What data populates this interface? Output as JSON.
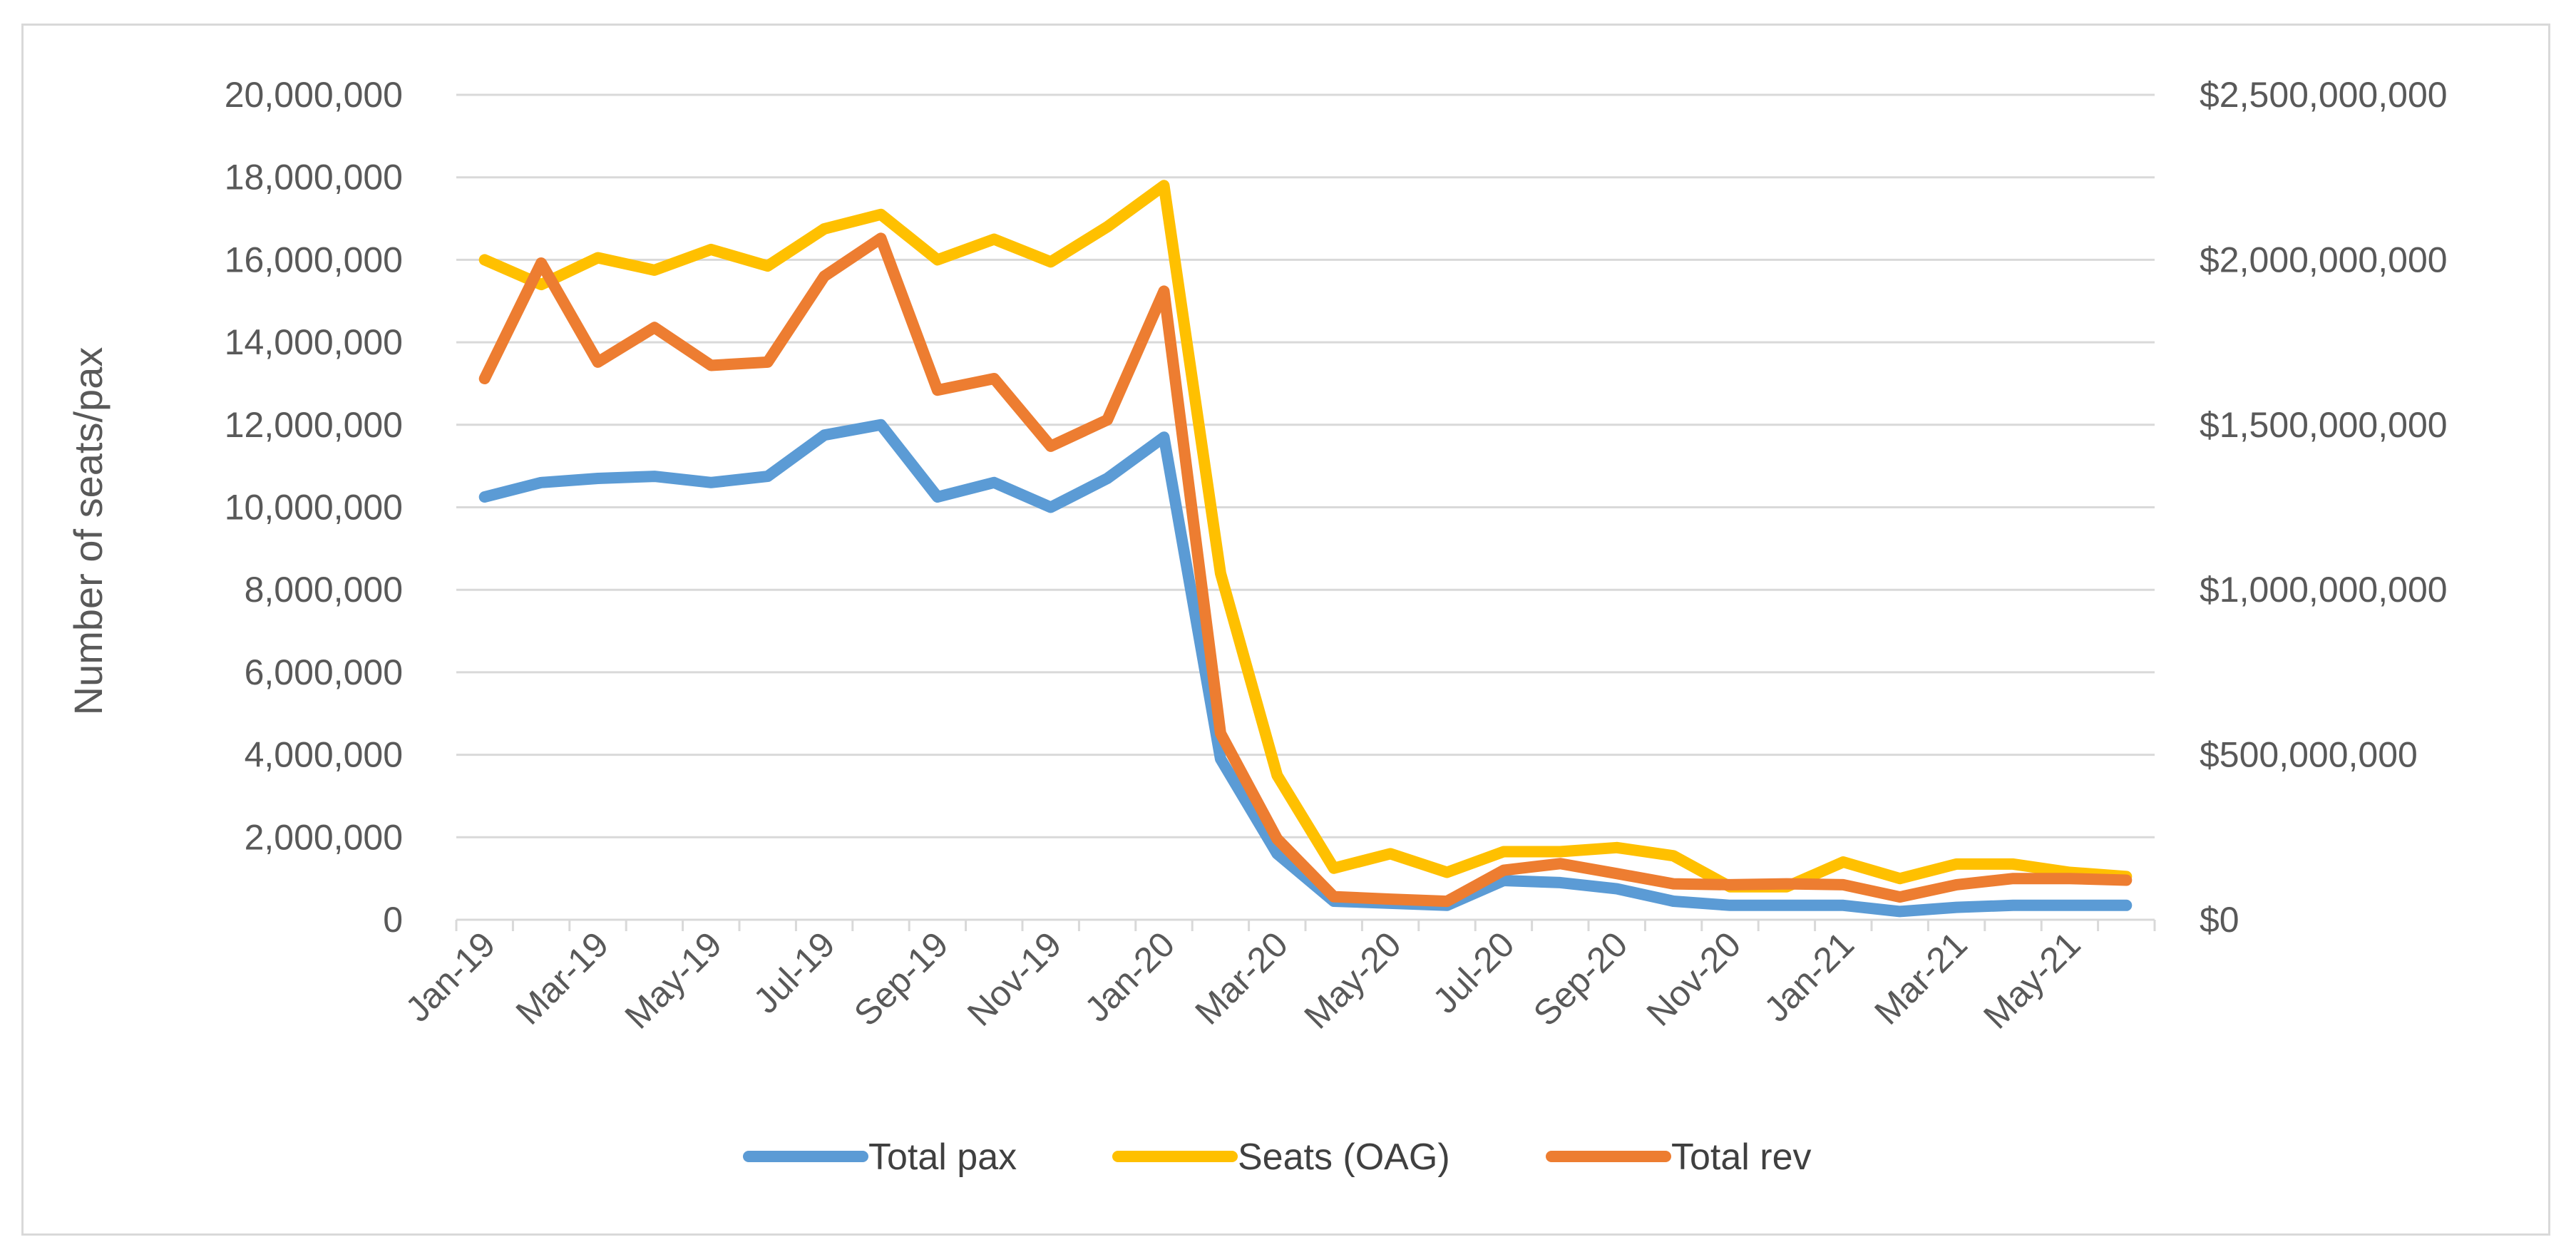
{
  "chart_data": {
    "type": "line",
    "title": "",
    "x_tick_labels": [
      "Jan-19",
      "Mar-19",
      "May-19",
      "Jul-19",
      "Sep-19",
      "Nov-19",
      "Jan-20",
      "Mar-20",
      "May-20",
      "Jul-20",
      "Sep-20",
      "Nov-20",
      "Jan-21",
      "Mar-21",
      "May-21"
    ],
    "categories": [
      "Jan-19",
      "Feb-19",
      "Mar-19",
      "Apr-19",
      "May-19",
      "Jun-19",
      "Jul-19",
      "Aug-19",
      "Sep-19",
      "Oct-19",
      "Nov-19",
      "Dec-19",
      "Jan-20",
      "Feb-20",
      "Mar-20",
      "Apr-20",
      "May-20",
      "Jun-20",
      "Jul-20",
      "Aug-20",
      "Sep-20",
      "Oct-20",
      "Nov-20",
      "Dec-20",
      "Jan-21",
      "Feb-21",
      "Mar-21",
      "Apr-21",
      "May-21",
      "Jun-21"
    ],
    "ylabel_left": "Number of seats/pax",
    "ylabel_right": "",
    "ylim_left": [
      0,
      20000000
    ],
    "ylim_right": [
      0,
      2500000000
    ],
    "y_ticks_left": [
      "0",
      "2,000,000",
      "4,000,000",
      "6,000,000",
      "8,000,000",
      "10,000,000",
      "12,000,000",
      "14,000,000",
      "16,000,000",
      "18,000,000",
      "20,000,000"
    ],
    "y_ticks_right": [
      "$0",
      "$500,000,000",
      "$1,000,000,000",
      "$1,500,000,000",
      "$2,000,000,000",
      "$2,500,000,000"
    ],
    "grid": true,
    "legend_position": "bottom",
    "series": [
      {
        "name": "Total pax",
        "axis": "left",
        "color": "#5b9bd5",
        "values": [
          10250000,
          10600000,
          10700000,
          10750000,
          10600000,
          10750000,
          11750000,
          12000000,
          10250000,
          10600000,
          10000000,
          10700000,
          11700000,
          3900000,
          1600000,
          450000,
          400000,
          350000,
          950000,
          900000,
          750000,
          450000,
          350000,
          350000,
          350000,
          200000,
          300000,
          350000,
          350000,
          350000
        ]
      },
      {
        "name": "Seats (OAG)",
        "axis": "left",
        "color": "#ffc000",
        "values": [
          16000000,
          15400000,
          16050000,
          15750000,
          16250000,
          15850000,
          16750000,
          17100000,
          16000000,
          16500000,
          15950000,
          16800000,
          17800000,
          8400000,
          3500000,
          1250000,
          1600000,
          1150000,
          1650000,
          1650000,
          1750000,
          1550000,
          800000,
          800000,
          1400000,
          1000000,
          1350000,
          1350000,
          1150000,
          1050000
        ]
      },
      {
        "name": "Total rev",
        "axis": "right",
        "color": "#ed7d31",
        "values": [
          1640000000,
          1990000000,
          1690000000,
          1795000000,
          1680000000,
          1690000000,
          1950000000,
          2065000000,
          1605000000,
          1640000000,
          1435000000,
          1515000000,
          1905000000,
          565000000,
          245000000,
          70000000,
          62500000,
          56000000,
          150000000,
          170000000,
          140000000,
          109000000,
          106000000,
          109000000,
          106000000,
          69000000,
          106000000,
          125000000,
          125000000,
          120000000
        ]
      }
    ]
  }
}
